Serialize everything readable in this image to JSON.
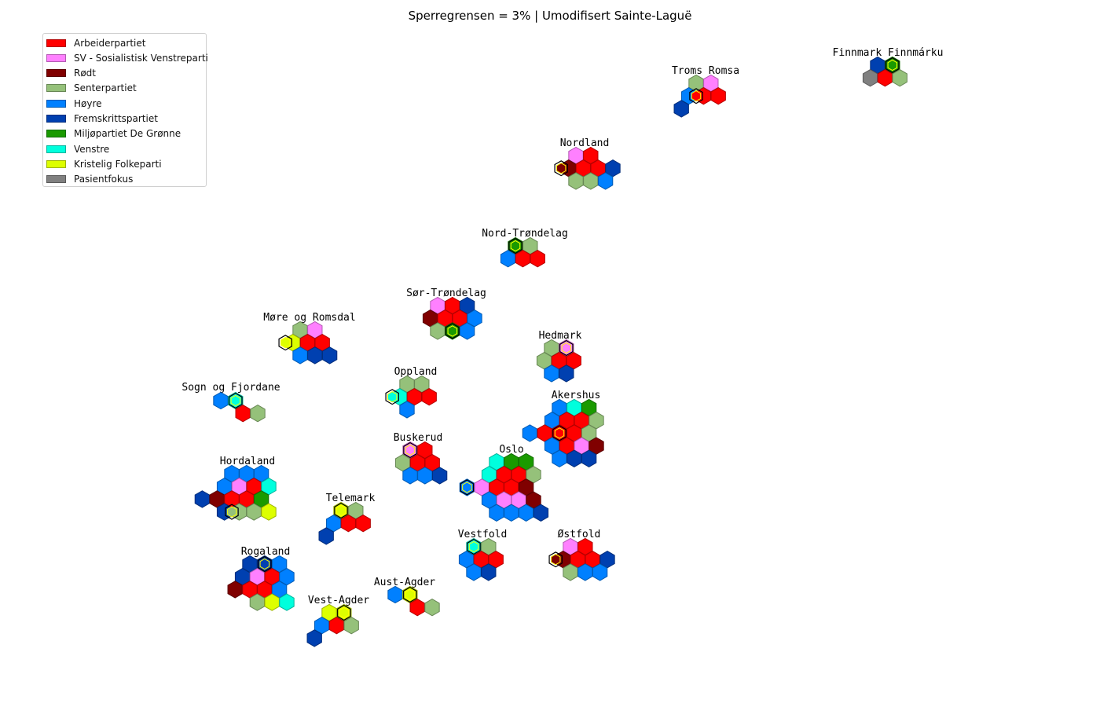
{
  "chart_data": {
    "type": "hexagon seat map",
    "title": "Sperregrensen = 3% | Umodifisert Sainte-Laguë",
    "legend": [
      {
        "party": "Arbeiderpartiet",
        "color": "#ff0000"
      },
      {
        "party": "SV - Sosialistisk Venstreparti",
        "color": "#ff80ff"
      },
      {
        "party": "Rødt",
        "color": "#800000"
      },
      {
        "party": "Senterpartiet",
        "color": "#95c17a"
      },
      {
        "party": "Høyre",
        "color": "#0080ff"
      },
      {
        "party": "Fremskrittspartiet",
        "color": "#0040b0"
      },
      {
        "party": "Miljøpartiet De Grønne",
        "color": "#1a9a00"
      },
      {
        "party": "Venstre",
        "color": "#00ffdd"
      },
      {
        "party": "Kristelig Folkeparti",
        "color": "#ddff00"
      },
      {
        "party": "Pasientfokus",
        "color": "#808080"
      }
    ],
    "counties": [
      {
        "name": "Finnmark Finnmárku",
        "seats": [
          {
            "party": "Fremskrittspartiet"
          },
          {
            "party": "Miljøpartiet De Grønne",
            "leveling": true
          },
          {
            "party": "Pasientfokus"
          },
          {
            "party": "Arbeiderpartiet"
          },
          {
            "party": "Senterpartiet"
          }
        ]
      },
      {
        "name": "Troms Romsa",
        "seats": [
          {
            "party": "Senterpartiet"
          },
          {
            "party": "SV - Sosialistisk Venstreparti"
          },
          {
            "party": "Høyre"
          },
          {
            "party": "Arbeiderpartiet",
            "leveling": true
          },
          {
            "party": "Arbeiderpartiet"
          },
          {
            "party": "Fremskrittspartiet"
          }
        ]
      },
      {
        "name": "Nordland",
        "seats": [
          {
            "party": "SV - Sosialistisk Venstreparti"
          },
          {
            "party": "Arbeiderpartiet"
          },
          {
            "party": "Rødt",
            "leveling": true
          },
          {
            "party": "Arbeiderpartiet"
          },
          {
            "party": "Arbeiderpartiet"
          },
          {
            "party": "Fremskrittspartiet"
          },
          {
            "party": "Senterpartiet"
          },
          {
            "party": "Senterpartiet"
          },
          {
            "party": "Høyre"
          }
        ]
      },
      {
        "name": "Nord-Trøndelag",
        "seats": [
          {
            "party": "Miljøpartiet De Grønne",
            "leveling": true
          },
          {
            "party": "Senterpartiet"
          },
          {
            "party": "Høyre"
          },
          {
            "party": "Arbeiderpartiet"
          },
          {
            "party": "Arbeiderpartiet"
          }
        ]
      },
      {
        "name": "Sør-Trøndelag",
        "seats": [
          {
            "party": "SV - Sosialistisk Venstreparti"
          },
          {
            "party": "Arbeiderpartiet"
          },
          {
            "party": "Fremskrittspartiet"
          },
          {
            "party": "Rødt"
          },
          {
            "party": "Arbeiderpartiet"
          },
          {
            "party": "Arbeiderpartiet"
          },
          {
            "party": "Høyre"
          },
          {
            "party": "Senterpartiet"
          },
          {
            "party": "Miljøpartiet De Grønne",
            "leveling": true
          },
          {
            "party": "Høyre"
          }
        ]
      },
      {
        "name": "Møre og Romsdal",
        "seats": [
          {
            "party": "Senterpartiet"
          },
          {
            "party": "SV - Sosialistisk Venstreparti"
          },
          {
            "party": "Kristelig Folkeparti",
            "leveling": true
          },
          {
            "party": "Arbeiderpartiet"
          },
          {
            "party": "Arbeiderpartiet"
          },
          {
            "party": "Høyre"
          },
          {
            "party": "Fremskrittspartiet"
          },
          {
            "party": "Fremskrittspartiet"
          }
        ]
      },
      {
        "name": "Hedmark",
        "seats": [
          {
            "party": "Senterpartiet"
          },
          {
            "party": "SV - Sosialistisk Venstreparti",
            "leveling": true
          },
          {
            "party": "Senterpartiet"
          },
          {
            "party": "Arbeiderpartiet"
          },
          {
            "party": "Arbeiderpartiet"
          },
          {
            "party": "Høyre"
          },
          {
            "party": "Fremskrittspartiet"
          }
        ]
      },
      {
        "name": "Oppland",
        "seats": [
          {
            "party": "Senterpartiet"
          },
          {
            "party": "Senterpartiet"
          },
          {
            "party": "Venstre",
            "leveling": true
          },
          {
            "party": "Arbeiderpartiet"
          },
          {
            "party": "Arbeiderpartiet"
          },
          {
            "party": "Høyre"
          }
        ]
      },
      {
        "name": "Sogn og Fjordane",
        "seats": [
          {
            "party": "Høyre"
          },
          {
            "party": "Venstre",
            "leveling": true
          },
          {
            "party": "Arbeiderpartiet"
          },
          {
            "party": "Senterpartiet"
          }
        ]
      },
      {
        "name": "Akershus",
        "seats": [
          {
            "party": "Høyre"
          },
          {
            "party": "Venstre"
          },
          {
            "party": "Miljøpartiet De Grønne"
          },
          {
            "party": "Høyre"
          },
          {
            "party": "Arbeiderpartiet"
          },
          {
            "party": "Arbeiderpartiet"
          },
          {
            "party": "Senterpartiet"
          },
          {
            "party": "Høyre"
          },
          {
            "party": "Arbeiderpartiet"
          },
          {
            "party": "Arbeiderpartiet",
            "leveling": true
          },
          {
            "party": "Arbeiderpartiet"
          },
          {
            "party": "Senterpartiet"
          },
          {
            "party": "Høyre"
          },
          {
            "party": "Arbeiderpartiet"
          },
          {
            "party": "SV - Sosialistisk Venstreparti"
          },
          {
            "party": "Rødt"
          },
          {
            "party": "Høyre"
          },
          {
            "party": "Fremskrittspartiet"
          },
          {
            "party": "Fremskrittspartiet"
          }
        ]
      },
      {
        "name": "Buskerud",
        "seats": [
          {
            "party": "SV - Sosialistisk Venstreparti",
            "leveling": true
          },
          {
            "party": "Arbeiderpartiet"
          },
          {
            "party": "Senterpartiet"
          },
          {
            "party": "Arbeiderpartiet"
          },
          {
            "party": "Arbeiderpartiet"
          },
          {
            "party": "Høyre"
          },
          {
            "party": "Høyre"
          },
          {
            "party": "Fremskrittspartiet"
          }
        ]
      },
      {
        "name": "Oslo",
        "seats": [
          {
            "party": "Venstre"
          },
          {
            "party": "Miljøpartiet De Grønne"
          },
          {
            "party": "Miljøpartiet De Grønne"
          },
          {
            "party": "Venstre"
          },
          {
            "party": "Arbeiderpartiet"
          },
          {
            "party": "Arbeiderpartiet"
          },
          {
            "party": "Senterpartiet"
          },
          {
            "party": "Høyre",
            "leveling": true
          },
          {
            "party": "SV - Sosialistisk Venstreparti"
          },
          {
            "party": "Arbeiderpartiet"
          },
          {
            "party": "Arbeiderpartiet"
          },
          {
            "party": "Rødt"
          },
          {
            "party": "Høyre"
          },
          {
            "party": "SV - Sosialistisk Venstreparti"
          },
          {
            "party": "SV - Sosialistisk Venstreparti"
          },
          {
            "party": "Rødt"
          },
          {
            "party": "Høyre"
          },
          {
            "party": "Høyre"
          },
          {
            "party": "Høyre"
          },
          {
            "party": "Fremskrittspartiet"
          }
        ]
      },
      {
        "name": "Hordaland",
        "seats": [
          {
            "party": "Høyre"
          },
          {
            "party": "Høyre"
          },
          {
            "party": "Høyre"
          },
          {
            "party": "Høyre"
          },
          {
            "party": "SV - Sosialistisk Venstreparti"
          },
          {
            "party": "Arbeiderpartiet"
          },
          {
            "party": "Venstre"
          },
          {
            "party": "Fremskrittspartiet"
          },
          {
            "party": "Rødt"
          },
          {
            "party": "Arbeiderpartiet"
          },
          {
            "party": "Arbeiderpartiet"
          },
          {
            "party": "Miljøpartiet De Grønne"
          },
          {
            "party": "Fremskrittspartiet"
          },
          {
            "party": "Senterpartiet",
            "leveling": true
          },
          {
            "party": "Senterpartiet"
          },
          {
            "party": "Kristelig Folkeparti"
          }
        ]
      },
      {
        "name": "Telemark",
        "seats": [
          {
            "party": "Kristelig Folkeparti",
            "leveling": true
          },
          {
            "party": "Senterpartiet"
          },
          {
            "party": "Høyre"
          },
          {
            "party": "Arbeiderpartiet"
          },
          {
            "party": "Arbeiderpartiet"
          },
          {
            "party": "Fremskrittspartiet"
          }
        ]
      },
      {
        "name": "Vestfold",
        "seats": [
          {
            "party": "Venstre",
            "leveling": true
          },
          {
            "party": "Senterpartiet"
          },
          {
            "party": "Høyre"
          },
          {
            "party": "Arbeiderpartiet"
          },
          {
            "party": "Arbeiderpartiet"
          },
          {
            "party": "Høyre"
          },
          {
            "party": "Fremskrittspartiet"
          }
        ]
      },
      {
        "name": "Østfold",
        "seats": [
          {
            "party": "SV - Sosialistisk Venstreparti"
          },
          {
            "party": "Arbeiderpartiet"
          },
          {
            "party": "Rødt",
            "leveling": true
          },
          {
            "party": "Arbeiderpartiet"
          },
          {
            "party": "Arbeiderpartiet"
          },
          {
            "party": "Fremskrittspartiet"
          },
          {
            "party": "Senterpartiet"
          },
          {
            "party": "Høyre"
          },
          {
            "party": "Høyre"
          }
        ]
      },
      {
        "name": "Rogaland",
        "seats": [
          {
            "party": "Fremskrittspartiet"
          },
          {
            "party": "Fremskrittspartiet",
            "leveling": true
          },
          {
            "party": "Høyre"
          },
          {
            "party": "Fremskrittspartiet"
          },
          {
            "party": "SV - Sosialistisk Venstreparti"
          },
          {
            "party": "Arbeiderpartiet"
          },
          {
            "party": "Høyre"
          },
          {
            "party": "Rødt"
          },
          {
            "party": "Arbeiderpartiet"
          },
          {
            "party": "Arbeiderpartiet"
          },
          {
            "party": "Høyre"
          },
          {
            "party": "Senterpartiet"
          },
          {
            "party": "Kristelig Folkeparti"
          },
          {
            "party": "Venstre"
          }
        ]
      },
      {
        "name": "Aust-Agder",
        "seats": [
          {
            "party": "Høyre"
          },
          {
            "party": "Kristelig Folkeparti",
            "leveling": true
          },
          {
            "party": "Arbeiderpartiet"
          },
          {
            "party": "Senterpartiet"
          }
        ]
      },
      {
        "name": "Vest-Agder",
        "seats": [
          {
            "party": "Kristelig Folkeparti"
          },
          {
            "party": "Kristelig Folkeparti",
            "leveling": true
          },
          {
            "party": "Høyre"
          },
          {
            "party": "Arbeiderpartiet"
          },
          {
            "party": "Senterpartiet"
          },
          {
            "party": "Fremskrittspartiet"
          }
        ]
      }
    ]
  }
}
